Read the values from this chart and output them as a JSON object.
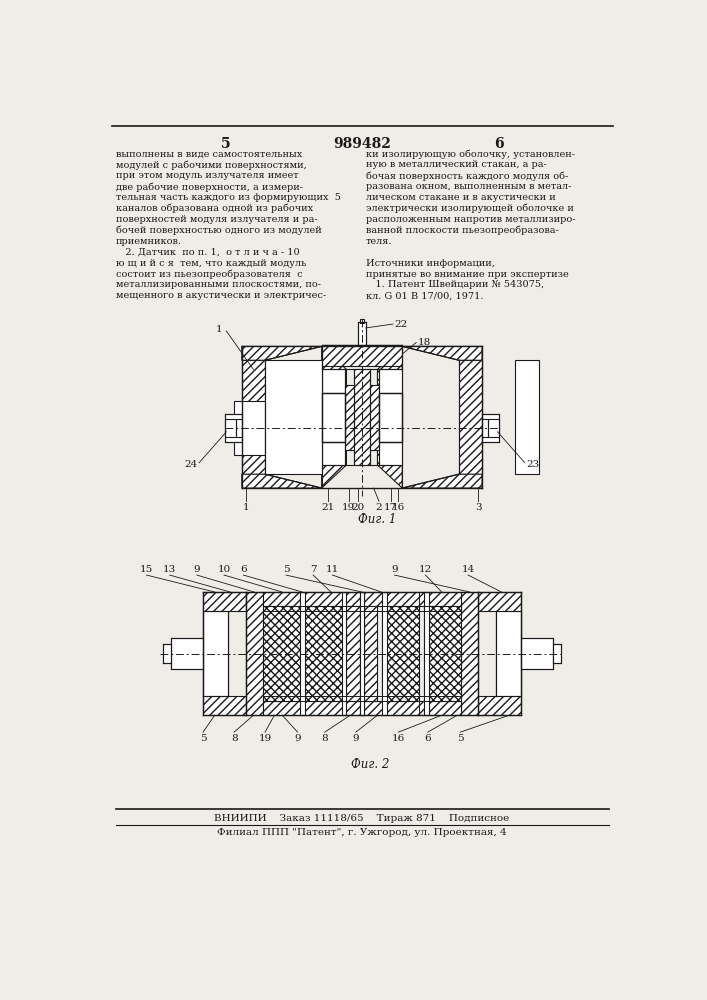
{
  "page_number_left": "5",
  "patent_number": "989482",
  "page_number_right": "6",
  "background_color": "#f0ede8",
  "text_color": "#1a1a1a",
  "left_column_text": [
    "выполнены в виде самостоятельных",
    "модулей с рабочими поверхностями,",
    "при этом модуль излучателя имеет",
    "две рабочие поверхности, а измери-",
    "тельная часть каждого из формирующих  5",
    "каналов образована одной из рабочих",
    "поверхностей модуля излучателя и ра-",
    "бочей поверхностью одного из модулей",
    "приемников.",
    "   2. Датчик  по п. 1,  о т л и ч а - 10",
    "ю щ и й с я  тем, что каждый модуль",
    "состоит из пьезопреобразователя  с",
    "металлизированными плоскостями, по-",
    "мещенного в акустически и электричес-"
  ],
  "right_column_text": [
    "ки изолирующую оболочку, установлен-",
    "ную в металлический стакан, а ра-",
    "бочая поверхность каждого модуля об-",
    "разована окном, выполненным в метал-",
    "лическом стакане и в акустически и",
    "электрически изолирующей оболочке и",
    "расположенным напротив металлизиро-",
    "ванной плоскости пьезопреобразова-",
    "теля.",
    "",
    "Источники информации,",
    "принятые во внимание при экспертизе",
    "   1. Патент Швейцарии № 543075,",
    "кл. G 01 B 17/00, 1971."
  ],
  "fig1_caption": "Фиг. 1",
  "fig2_caption": "Фиг. 2",
  "footer_line1": "ВНИИПИ    Заказ 11118/65    Тираж 871    Подписное",
  "footer_line2": "Филиал ППП \"Патент\", г. Ужгород, ул. Проектная, 4"
}
